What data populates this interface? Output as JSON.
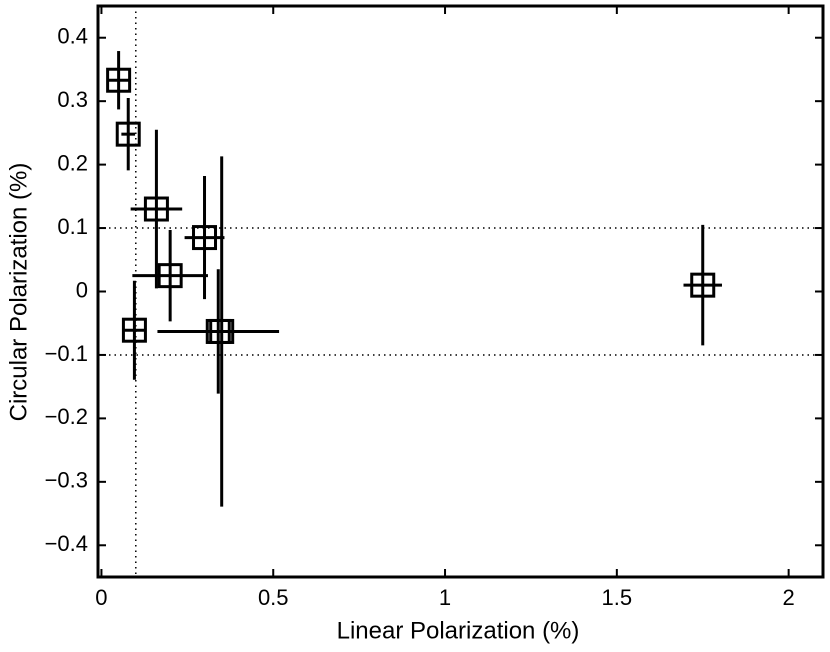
{
  "chart_data": {
    "type": "scatter",
    "x_label": "Linear Polarization (%)",
    "y_label": "Circular Polarization (%)",
    "xlim": [
      -0.01,
      2.1
    ],
    "ylim": [
      -0.45,
      0.45
    ],
    "xticks": [
      0,
      0.5,
      1,
      1.5,
      2
    ],
    "yticks": [
      {
        "value": -0.4,
        "label": "−0.4"
      },
      {
        "value": -0.3,
        "label": "−0.3"
      },
      {
        "value": -0.2,
        "label": "−0.2"
      },
      {
        "value": -0.1,
        "label": "−0.1"
      },
      0,
      0.1,
      0.2,
      0.3,
      0.4
    ],
    "vlines": [
      0.1
    ],
    "hlines": [
      0.1,
      -0.1
    ],
    "color": "#000000",
    "x": [
      0.05,
      0.078,
      0.16,
      0.3,
      0.2,
      0.096,
      0.34,
      0.35,
      1.75
    ],
    "values": [
      0.333,
      0.248,
      0.13,
      0.085,
      0.025,
      -0.061,
      -0.063,
      -0.063,
      0.01
    ],
    "xerr": [
      0.03,
      0.02,
      0.075,
      0.058,
      0.11,
      0.03,
      0.177,
      0.03,
      0.056
    ],
    "yerr": [
      0.046,
      0.057,
      0.125,
      0.097,
      0.072,
      0.078,
      0.098,
      0.276,
      0.095
    ]
  }
}
